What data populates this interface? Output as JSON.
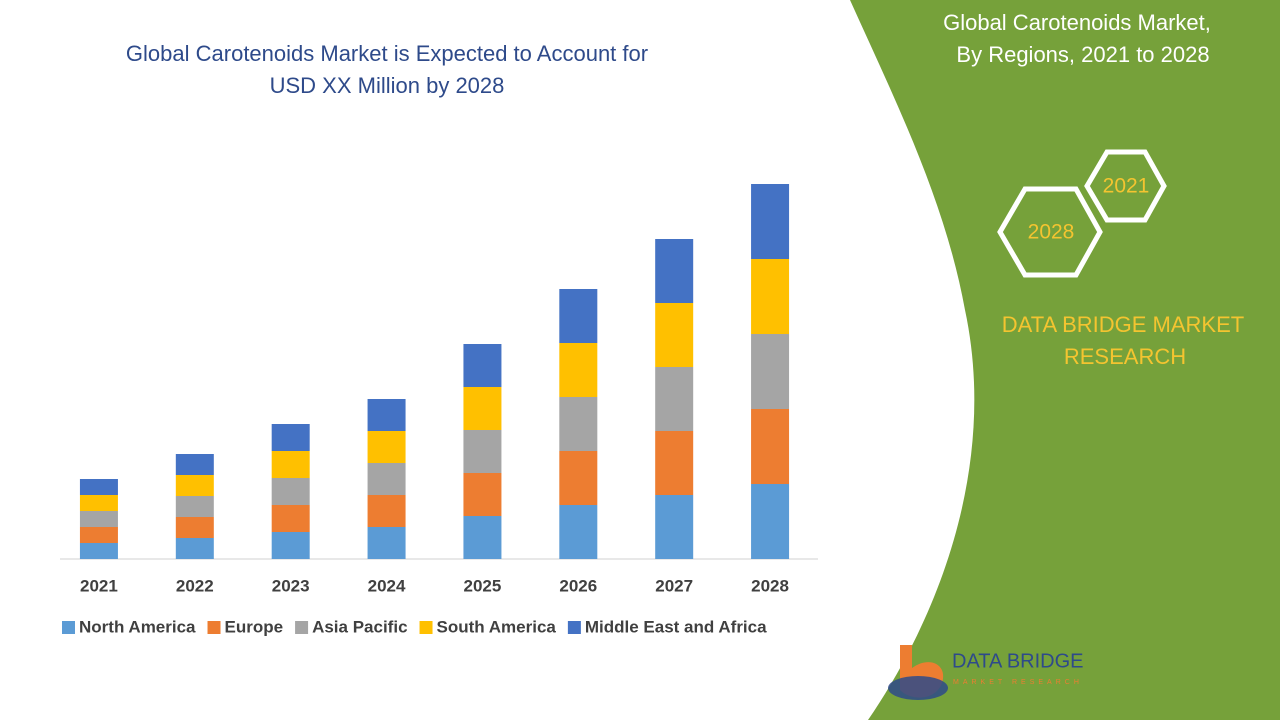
{
  "chart_data": {
    "type": "bar",
    "stacked": true,
    "title": [
      "Global Carotenoids Market is Expected to Account for",
      "USD XX Million by 2028"
    ],
    "categories": [
      "2021",
      "2022",
      "2023",
      "2024",
      "2025",
      "2026",
      "2027",
      "2028"
    ],
    "series": [
      {
        "name": "North America",
        "color": "#5b9bd5",
        "values": [
          16,
          21,
          27,
          32,
          43,
          54,
          64,
          75
        ]
      },
      {
        "name": "Europe",
        "color": "#ed7d31",
        "values": [
          16,
          21,
          27,
          32,
          43,
          54,
          64,
          75
        ]
      },
      {
        "name": "Asia Pacific",
        "color": "#a5a5a5",
        "values": [
          16,
          21,
          27,
          32,
          43,
          54,
          64,
          75
        ]
      },
      {
        "name": "South America",
        "color": "#ffc000",
        "values": [
          16,
          21,
          27,
          32,
          43,
          54,
          64,
          75
        ]
      },
      {
        "name": "Middle East and Africa",
        "color": "#4472c4",
        "values": [
          16,
          21,
          27,
          32,
          43,
          54,
          64,
          75
        ]
      }
    ],
    "legend": "bottom"
  },
  "panel": {
    "title": [
      "Global Carotenoids Market,",
      "By Regions, 2021 to 2028"
    ],
    "hexagons": [
      "2021",
      "2028"
    ],
    "brand": [
      "DATA BRIDGE MARKET",
      "RESEARCH"
    ]
  },
  "logo": {
    "name": "DATA BRIDGE",
    "tagline": "MARKET RESEARCH"
  }
}
